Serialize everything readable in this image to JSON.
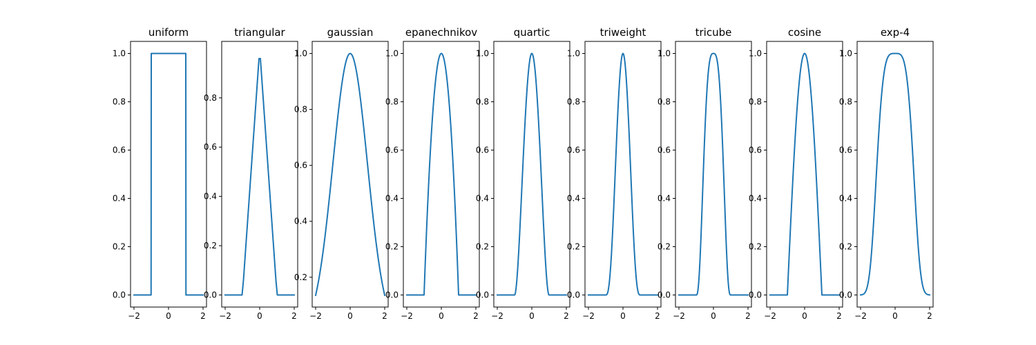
{
  "figure": {
    "background": "#ffffff"
  },
  "chart_data": [
    {
      "type": "line",
      "title": "uniform",
      "kernel": "uniform",
      "xlim": [
        -2.2,
        2.2
      ],
      "ylim": [
        -0.05,
        1.05
      ],
      "xticks": [
        -2,
        0,
        2
      ],
      "yticks": [
        0.0,
        0.2,
        0.4,
        0.6,
        0.8,
        1.0
      ],
      "ytick_labels": [
        "0.0",
        "0.2",
        "0.4",
        "0.6",
        "0.8",
        "1.0"
      ],
      "color": "#1f77b4",
      "grid": false,
      "x_range": [
        -2,
        2
      ],
      "n_points": 401
    },
    {
      "type": "line",
      "title": "triangular",
      "kernel": "triangular",
      "xlim": [
        -2.2,
        2.2
      ],
      "ylim": [
        -0.049,
        1.029
      ],
      "xticks": [
        -2,
        0,
        2
      ],
      "yticks": [
        0.0,
        0.2,
        0.4,
        0.6,
        0.8
      ],
      "ytick_labels": [
        "0.0",
        "0.2",
        "0.4",
        "0.6",
        "0.8"
      ],
      "color": "#1f77b4",
      "grid": false,
      "x_range": [
        -2,
        2
      ],
      "n_points": 50
    },
    {
      "type": "line",
      "title": "gaussian",
      "kernel": "gaussian",
      "xlim": [
        -2.2,
        2.2
      ],
      "ylim": [
        0.0933,
        1.0433
      ],
      "xticks": [
        -2,
        0,
        2
      ],
      "yticks": [
        0.2,
        0.4,
        0.6,
        0.8,
        1.0
      ],
      "ytick_labels": [
        "0.2",
        "0.4",
        "0.6",
        "0.8",
        "1.0"
      ],
      "color": "#1f77b4",
      "grid": false,
      "x_range": [
        -2,
        2
      ],
      "n_points": 401
    },
    {
      "type": "line",
      "title": "epanechnikov",
      "kernel": "epanechnikov",
      "xlim": [
        -2.2,
        2.2
      ],
      "ylim": [
        -0.05,
        1.05
      ],
      "xticks": [
        -2,
        0,
        2
      ],
      "yticks": [
        0.0,
        0.2,
        0.4,
        0.6,
        0.8,
        1.0
      ],
      "ytick_labels": [
        "0.0",
        "0.2",
        "0.4",
        "0.6",
        "0.8",
        "1.0"
      ],
      "color": "#1f77b4",
      "grid": false,
      "x_range": [
        -2,
        2
      ],
      "n_points": 401
    },
    {
      "type": "line",
      "title": "quartic",
      "kernel": "quartic",
      "xlim": [
        -2.2,
        2.2
      ],
      "ylim": [
        -0.05,
        1.05
      ],
      "xticks": [
        -2,
        0,
        2
      ],
      "yticks": [
        0.0,
        0.2,
        0.4,
        0.6,
        0.8,
        1.0
      ],
      "ytick_labels": [
        "0.0",
        "0.2",
        "0.4",
        "0.6",
        "0.8",
        "1.0"
      ],
      "color": "#1f77b4",
      "grid": false,
      "x_range": [
        -2,
        2
      ],
      "n_points": 401
    },
    {
      "type": "line",
      "title": "triweight",
      "kernel": "triweight",
      "xlim": [
        -2.2,
        2.2
      ],
      "ylim": [
        -0.05,
        1.05
      ],
      "xticks": [
        -2,
        0,
        2
      ],
      "yticks": [
        0.0,
        0.2,
        0.4,
        0.6,
        0.8,
        1.0
      ],
      "ytick_labels": [
        "0.0",
        "0.2",
        "0.4",
        "0.6",
        "0.8",
        "1.0"
      ],
      "color": "#1f77b4",
      "grid": false,
      "x_range": [
        -2,
        2
      ],
      "n_points": 401
    },
    {
      "type": "line",
      "title": "tricube",
      "kernel": "tricube",
      "xlim": [
        -2.2,
        2.2
      ],
      "ylim": [
        -0.05,
        1.05
      ],
      "xticks": [
        -2,
        0,
        2
      ],
      "yticks": [
        0.0,
        0.2,
        0.4,
        0.6,
        0.8,
        1.0
      ],
      "ytick_labels": [
        "0.0",
        "0.2",
        "0.4",
        "0.6",
        "0.8",
        "1.0"
      ],
      "color": "#1f77b4",
      "grid": false,
      "x_range": [
        -2,
        2
      ],
      "n_points": 401
    },
    {
      "type": "line",
      "title": "cosine",
      "kernel": "cosine",
      "xlim": [
        -2.2,
        2.2
      ],
      "ylim": [
        -0.05,
        1.05
      ],
      "xticks": [
        -2,
        0,
        2
      ],
      "yticks": [
        0.0,
        0.2,
        0.4,
        0.6,
        0.8,
        1.0
      ],
      "ytick_labels": [
        "0.0",
        "0.2",
        "0.4",
        "0.6",
        "0.8",
        "1.0"
      ],
      "color": "#1f77b4",
      "grid": false,
      "x_range": [
        -2,
        2
      ],
      "n_points": 401
    },
    {
      "type": "line",
      "title": "exp-4",
      "kernel": "exp-4",
      "xlim": [
        -2.2,
        2.2
      ],
      "ylim": [
        -0.05,
        1.05
      ],
      "xticks": [
        -2,
        0,
        2
      ],
      "yticks": [
        0.0,
        0.2,
        0.4,
        0.6,
        0.8,
        1.0
      ],
      "ytick_labels": [
        "0.0",
        "0.2",
        "0.4",
        "0.6",
        "0.8",
        "1.0"
      ],
      "color": "#1f77b4",
      "grid": false,
      "x_range": [
        -2,
        2
      ],
      "n_points": 401
    }
  ]
}
